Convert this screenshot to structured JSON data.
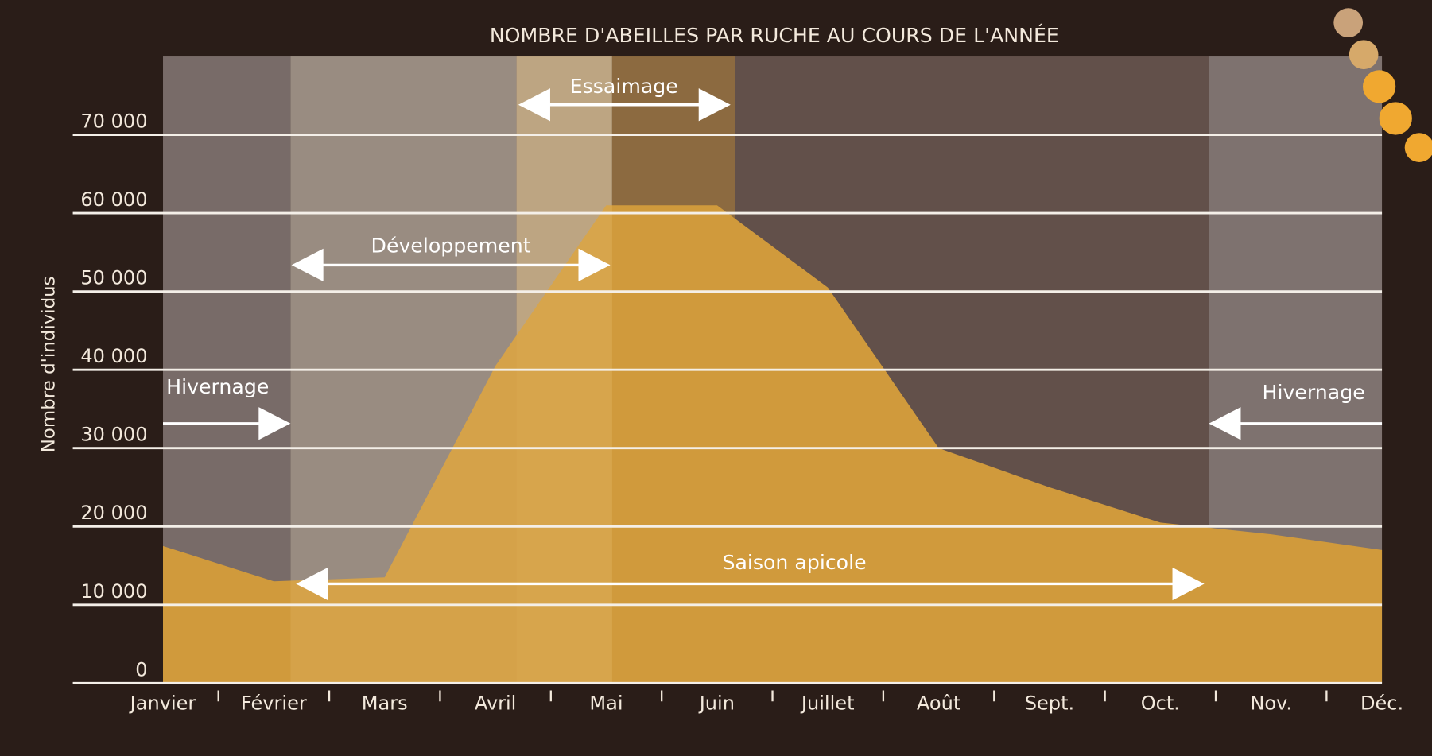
{
  "chart_data": {
    "type": "area",
    "title": "NOMBRE D'ABEILLES PAR RUCHE AU COURS DE L'ANNÉE",
    "y_label": "Nombre d'individus",
    "categories": [
      "Janvier",
      "Février",
      "Mars",
      "Avril",
      "Mai",
      "Juin",
      "Juillet",
      "Août",
      "Sept.",
      "Oct.",
      "Nov.",
      "Déc."
    ],
    "values": [
      17500,
      13000,
      13500,
      40500,
      61000,
      61000,
      50500,
      30000,
      25000,
      20500,
      19000,
      17000
    ],
    "color": "#d09a3c",
    "ylim": [
      0,
      80000
    ],
    "yticks": [
      0,
      {
        "value": 10000,
        "label": "10 000"
      },
      {
        "value": 20000,
        "label": "20 000"
      },
      {
        "value": 30000,
        "label": "30 000"
      },
      {
        "value": 40000,
        "label": "40 000"
      },
      {
        "value": 50000,
        "label": "50 000"
      },
      {
        "value": 60000,
        "label": "60 000"
      },
      {
        "value": 70000,
        "label": "70 000"
      }
    ],
    "grid": true,
    "annotations": [
      "Essaimage",
      "Développement",
      "Hivernage",
      "Hivernage",
      "Saison apicole"
    ]
  }
}
